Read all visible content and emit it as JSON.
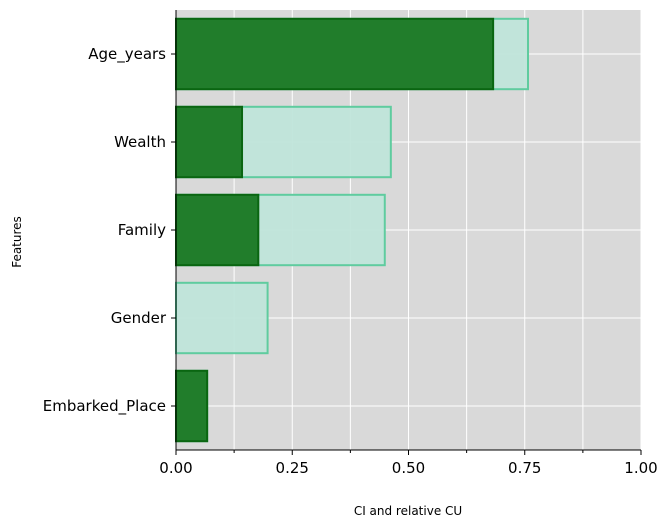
{
  "chart_data": {
    "type": "bar",
    "orientation": "horizontal",
    "title": "",
    "xlabel": "CI and relative CU",
    "ylabel": "Features",
    "xlim": [
      0,
      1
    ],
    "x_ticks": [
      "0.00",
      "0.25",
      "0.50",
      "0.75",
      "1.00"
    ],
    "categories": [
      "Age_years",
      "Wealth",
      "Family",
      "Gender",
      "Embarked_Place"
    ],
    "series": [
      {
        "role": "CU (background)",
        "values": [
          0.757,
          0.462,
          0.449,
          0.197,
          0.067
        ],
        "color": "#c0e5da",
        "edge": "#5fcc9f"
      },
      {
        "role": "CI (foreground)",
        "values": [
          0.682,
          0.142,
          0.177,
          0.0,
          0.067
        ],
        "color": "#217d2b",
        "edge": "#0a6611"
      }
    ],
    "grid": true,
    "background": "#d9d9d9"
  }
}
